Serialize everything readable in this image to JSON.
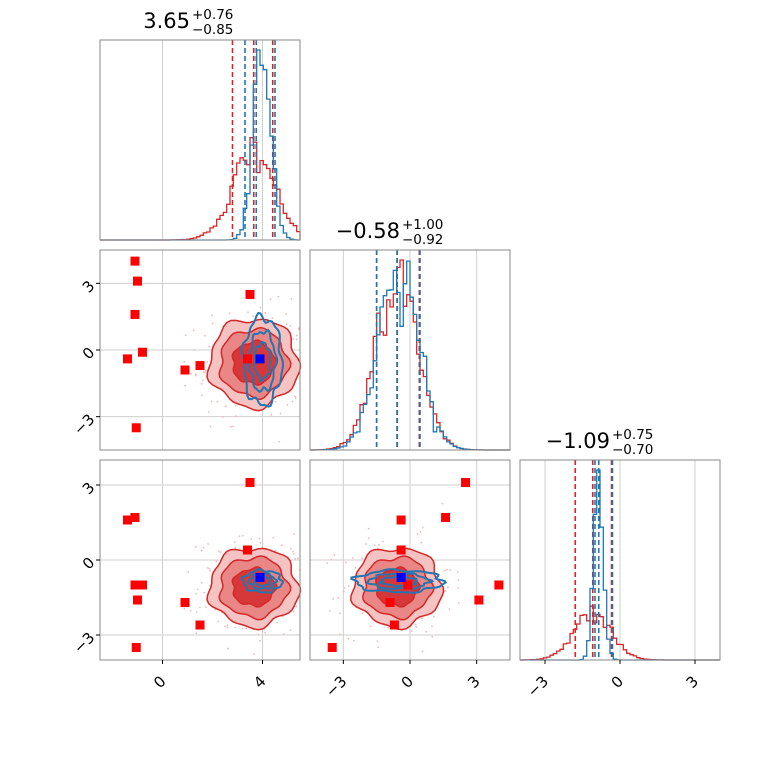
{
  "chart_data": {
    "type": "corner",
    "parameters": [
      {
        "title": {
          "median": "3.65",
          "plus": "+0.76",
          "minus": "−0.85"
        },
        "range": [
          -2.5,
          5.5
        ],
        "ticks": [
          0,
          4
        ],
        "tick_labels": [
          "0",
          "4"
        ]
      },
      {
        "title": {
          "median": "−0.58",
          "plus": "+1.00",
          "minus": "−0.92"
        },
        "range": [
          -4.5,
          4.5
        ],
        "ticks": [
          -3,
          0,
          3
        ],
        "tick_labels": [
          "−3",
          "0",
          "3"
        ]
      },
      {
        "title": {
          "median": "−1.09",
          "plus": "+0.75",
          "minus": "−0.70"
        },
        "range": [
          -4,
          4
        ],
        "ticks": [
          -3,
          0,
          3
        ],
        "tick_labels": [
          "−3",
          "0",
          "3"
        ]
      }
    ],
    "series": [
      {
        "color": "#1f77b4",
        "dist": [
          {
            "mean": 4.0,
            "sd": 0.35
          },
          {
            "mean": -0.5,
            "sd": 0.9
          },
          {
            "mean": -0.85,
            "sd": 0.2
          }
        ],
        "quantiles": [
          [
            3.3,
            3.75,
            4.5
          ],
          [
            -1.5,
            -0.58,
            0.45
          ],
          [
            -1.0,
            -0.85,
            -0.3
          ]
        ]
      },
      {
        "color": "#d62728",
        "dist": [
          {
            "mean": 3.65,
            "sd": 0.85
          },
          {
            "mean": -0.58,
            "sd": 0.95
          },
          {
            "mean": -1.09,
            "sd": 0.75
          }
        ],
        "quantiles": [
          [
            2.8,
            3.65,
            4.41
          ],
          [
            -1.5,
            -0.58,
            0.42
          ],
          [
            -1.79,
            -1.09,
            -0.34
          ]
        ]
      }
    ],
    "red_markers": [
      [
        -1.0,
        3.1,
        -1.6
      ],
      [
        -1.05,
        -3.5,
        -3.5
      ],
      [
        -1.1,
        1.6,
        1.7
      ],
      [
        -1.4,
        -0.4,
        1.6
      ],
      [
        -0.8,
        -0.1,
        -1.0
      ],
      [
        0.9,
        -0.9,
        -1.7
      ],
      [
        1.5,
        -0.7,
        -2.6
      ],
      [
        3.5,
        2.5,
        3.1
      ],
      [
        3.4,
        -0.4,
        0.4
      ],
      [
        -1.1,
        4.0,
        -1.0
      ]
    ],
    "blue_marker": [
      3.9,
      -0.4,
      -0.7
    ],
    "grid": true
  }
}
